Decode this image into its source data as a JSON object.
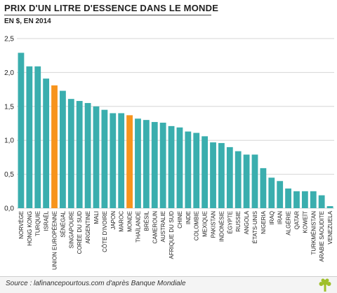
{
  "header": {
    "title": "PRIX D'UN LITRE D'ESSENCE DANS LE MONDE",
    "subtitle": "EN $, EN 2014"
  },
  "footer": {
    "source": "Source : lafinancepourtous.com d'après Banque Mondiale"
  },
  "colors": {
    "bar": "#3aaeae",
    "highlight": "#f7941d",
    "grid": "#d6d6d6",
    "text": "#222222",
    "logo": "#9fbf2a"
  },
  "chart_data": {
    "type": "bar",
    "categories": [
      "NORVÈGE",
      "HONG KONG",
      "TURQUIE",
      "ISRAËL",
      "UNION EUROPÉENNE",
      "SÉNÉGAL",
      "SINGAPOURE",
      "CORÉE DU SUD",
      "ARGENTINE",
      "MALI",
      "CÔTE D'IVOIRE",
      "JAPON",
      "MAROC",
      "MONDE",
      "THAÏLANDE",
      "BRÉSIL",
      "CAMEROUN",
      "AUSTRALIE",
      "AFRIQUE DU SUD",
      "CHINE",
      "INDE",
      "COLOMBIE",
      "MEXIQUE",
      "PAKISTAN",
      "INDONÉSIE",
      "ÉGYPTE",
      "RUSSIE",
      "ANGOLA",
      "ÉTATS-UNIS",
      "NIGERIA",
      "IRAQ",
      "IRAN",
      "ALGÉRIE",
      "QATAR",
      "KOWEÏT",
      "TURKMÉNISTAN",
      "ARABIE SAOUDITE",
      "VENEZUELA"
    ],
    "values": [
      2.29,
      2.09,
      2.09,
      1.91,
      1.81,
      1.73,
      1.61,
      1.58,
      1.55,
      1.5,
      1.45,
      1.4,
      1.4,
      1.37,
      1.32,
      1.3,
      1.27,
      1.26,
      1.21,
      1.19,
      1.13,
      1.11,
      1.06,
      0.97,
      0.96,
      0.9,
      0.84,
      0.79,
      0.79,
      0.59,
      0.45,
      0.4,
      0.29,
      0.25,
      0.25,
      0.25,
      0.19,
      0.03
    ],
    "highlighted": [
      "UNION EUROPÉENNE",
      "MONDE"
    ],
    "yticks": [
      "0,0",
      "0,5",
      "1,0",
      "1,5",
      "2,0",
      "2,5"
    ],
    "ylim": [
      0,
      2.5
    ],
    "grid": true,
    "xlabel": "",
    "ylabel": ""
  }
}
